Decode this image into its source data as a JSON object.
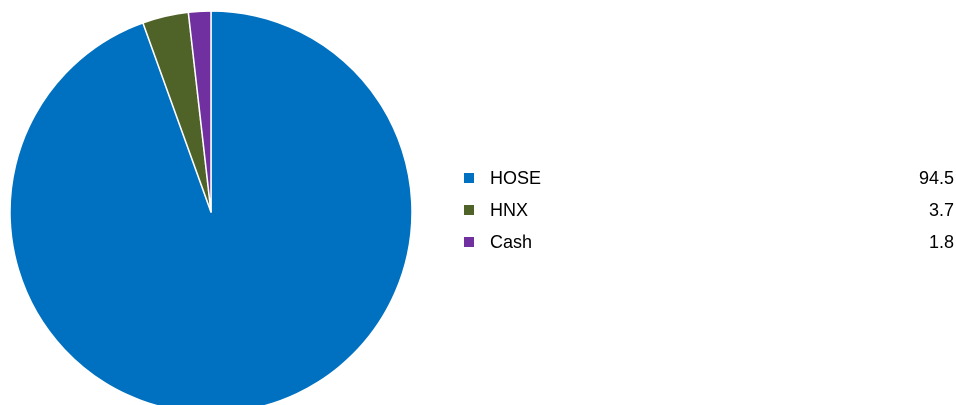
{
  "chart_data": {
    "type": "pie",
    "start_angle": "12 o'clock",
    "direction": "clockwise",
    "legend_position": "right",
    "slices": [
      {
        "label": "HOSE",
        "value": 94.5,
        "value_label": "94.5",
        "color": "#0070C0"
      },
      {
        "label": "HNX",
        "value": 3.7,
        "value_label": "3.7",
        "color": "#4F6228"
      },
      {
        "label": "Cash",
        "value": 1.8,
        "value_label": "1.8",
        "color": "#7030A0"
      }
    ]
  }
}
